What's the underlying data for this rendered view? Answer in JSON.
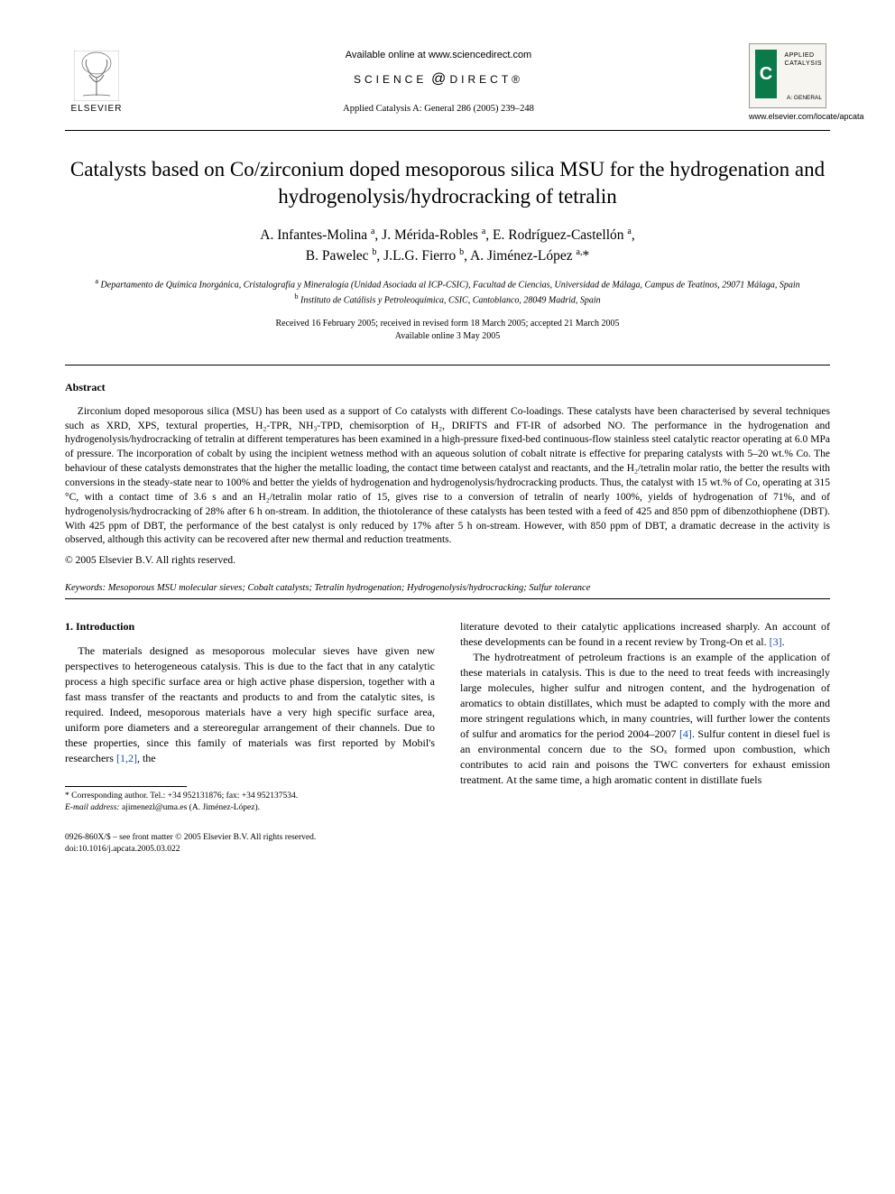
{
  "header": {
    "publisher_name": "ELSEVIER",
    "available_online": "Available online at www.sciencedirect.com",
    "sciencedirect_label": "SCIENCE",
    "sciencedirect_label2": "DIRECT®",
    "journal_ref": "Applied Catalysis A: General 286 (2005) 239–248",
    "cover_letter": "C",
    "cover_title_l1": "APPLIED",
    "cover_title_l2": "CATALYSIS",
    "cover_sub": "A: GENERAL",
    "journal_url": "www.elsevier.com/locate/apcata"
  },
  "title": "Catalysts based on Co/zirconium doped mesoporous silica MSU for the hydrogenation and hydrogenolysis/hydrocracking of tetralin",
  "authors_html": "A. Infantes-Molina <sup>a</sup>, J. Mérida-Robles <sup>a</sup>, E. Rodríguez-Castellón <sup>a</sup>,<br>B. Pawelec <sup>b</sup>, J.L.G. Fierro <sup>b</sup>, A. Jiménez-López <sup>a,</sup>*",
  "affiliations": {
    "a": "Departamento de Química Inorgánica, Cristalografía y Mineralogía (Unidad Asociada al ICP-CSIC), Facultad de Ciencias, Universidad de Málaga, Campus de Teatinos, 29071 Málaga, Spain",
    "b": "Instituto de Catálisis y Petroleoquímica, CSIC, Cantoblanco, 28049 Madrid, Spain"
  },
  "dates": {
    "received": "Received 16 February 2005; received in revised form 18 March 2005; accepted 21 March 2005",
    "online": "Available online 3 May 2005"
  },
  "abstract": {
    "heading": "Abstract",
    "body": "Zirconium doped mesoporous silica (MSU) has been used as a support of Co catalysts with different Co-loadings. These catalysts have been characterised by several techniques such as XRD, XPS, textural properties, H₂-TPR, NH₃-TPD, chemisorption of H₂, DRIFTS and FT-IR of adsorbed NO. The performance in the hydrogenation and hydrogenolysis/hydrocracking of tetralin at different temperatures has been examined in a high-pressure fixed-bed continuous-flow stainless steel catalytic reactor operating at 6.0 MPa of pressure. The incorporation of cobalt by using the incipient wetness method with an aqueous solution of cobalt nitrate is effective for preparing catalysts with 5–20 wt.% Co. The behaviour of these catalysts demonstrates that the higher the metallic loading, the contact time between catalyst and reactants, and the H₂/tetralin molar ratio, the better the results with conversions in the steady-state near to 100% and better the yields of hydrogenation and hydrogenolysis/hydrocracking products. Thus, the catalyst with 15 wt.% of Co, operating at 315 °C, with a contact time of 3.6 s and an H₂/tetralin molar ratio of 15, gives rise to a conversion of tetralin of nearly 100%, yields of hydrogenation of 71%, and of hydrogenolysis/hydrocracking of 28% after 6 h on-stream. In addition, the thiotolerance of these catalysts has been tested with a feed of 425 and 850 ppm of dibenzothiophene (DBT). With 425 ppm of DBT, the performance of the best catalyst is only reduced by 17% after 5 h on-stream. However, with 850 ppm of DBT, a dramatic decrease in the activity is observed, although this activity can be recovered after new thermal and reduction treatments.",
    "copyright": "© 2005 Elsevier B.V. All rights reserved."
  },
  "keywords": {
    "label": "Keywords:",
    "text": "Mesoporous MSU molecular sieves; Cobalt catalysts; Tetralin hydrogenation; Hydrogenolysis/hydrocracking; Sulfur tolerance"
  },
  "section1": {
    "heading": "1. Introduction",
    "col1_p1": "The materials designed as mesoporous molecular sieves have given new perspectives to heterogeneous catalysis. This is due to the fact that in any catalytic process a high specific surface area or high active phase dispersion, together with a fast mass transfer of the reactants and products to and from the catalytic sites, is required. Indeed, mesoporous materials have a very high specific surface area, uniform pore diameters and a stereoregular arrangement of their channels. Due to these properties, since this family of materials was first reported by Mobil's researchers ",
    "col1_cite1": "[1,2]",
    "col1_p1_tail": ", the",
    "col2_p1_head": "literature devoted to their catalytic applications increased sharply. An account of these developments can be found in a recent review by Trong-On et al. ",
    "col2_cite1": "[3]",
    "col2_p1_tail": ".",
    "col2_p2_head": "The hydrotreatment of petroleum fractions is an example of the application of these materials in catalysis. This is due to the need to treat feeds with increasingly large molecules, higher sulfur and nitrogen content, and the hydrogenation of aromatics to obtain distillates, which must be adapted to comply with the more and more stringent regulations which, in many countries, will further lower the contents of sulfur and aromatics for the period 2004–2007 ",
    "col2_cite2": "[4]",
    "col2_p2_tail": ". Sulfur content in diesel fuel is an environmental concern due to the SOₓ formed upon combustion, which contributes to acid rain and poisons the TWC converters for exhaust emission treatment. At the same time, a high aromatic content in distillate fuels"
  },
  "footnote": {
    "corr": "* Corresponding author. Tel.: +34 952131876; fax: +34 952137534.",
    "email_label": "E-mail address:",
    "email": "ajimenezl@uma.es (A. Jiménez-López)."
  },
  "footer": {
    "line1": "0926-860X/$ – see front matter © 2005 Elsevier B.V. All rights reserved.",
    "line2": "doi:10.1016/j.apcata.2005.03.022"
  },
  "colors": {
    "cite": "#1a4fb3",
    "cover_green": "#0a7a4b"
  }
}
